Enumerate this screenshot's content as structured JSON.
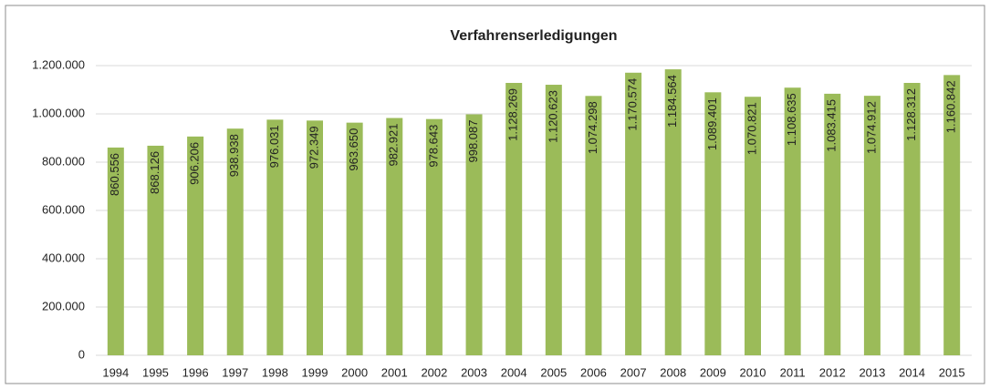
{
  "chart_data": {
    "type": "bar",
    "title": "Verfahrenserledigungen",
    "categories": [
      "1994",
      "1995",
      "1996",
      "1997",
      "1998",
      "1999",
      "2000",
      "2001",
      "2002",
      "2003",
      "2004",
      "2005",
      "2006",
      "2007",
      "2008",
      "2009",
      "2010",
      "2011",
      "2012",
      "2013",
      "2014",
      "2015"
    ],
    "values": [
      860556,
      868126,
      906206,
      938938,
      976031,
      972349,
      963650,
      982921,
      978643,
      998087,
      1128269,
      1120623,
      1074298,
      1170574,
      1184564,
      1089401,
      1070821,
      1108635,
      1083415,
      1074912,
      1128312,
      1160842
    ],
    "value_labels": [
      "860.556",
      "868.126",
      "906.206",
      "938.938",
      "976.031",
      "972.349",
      "963.650",
      "982.921",
      "978.643",
      "998.087",
      "1.128.269",
      "1.120.623",
      "1.074.298",
      "1.170.574",
      "1.184.564",
      "1.089.401",
      "1.070.821",
      "1.108.635",
      "1.083.415",
      "1.074.912",
      "1.128.312",
      "1.160.842"
    ],
    "color": "#9bbb59",
    "ylim": [
      0,
      1200000
    ],
    "yticks": [
      0,
      {
        "value": 200000,
        "label": "200.000"
      },
      {
        "value": 400000,
        "label": "400.000"
      },
      {
        "value": 600000,
        "label": "600.000"
      },
      {
        "value": 800000,
        "label": "800.000"
      },
      {
        "value": 1000000,
        "label": "1.000.000"
      },
      {
        "value": 1200000,
        "label": "1.200.000"
      }
    ],
    "grid": true
  }
}
